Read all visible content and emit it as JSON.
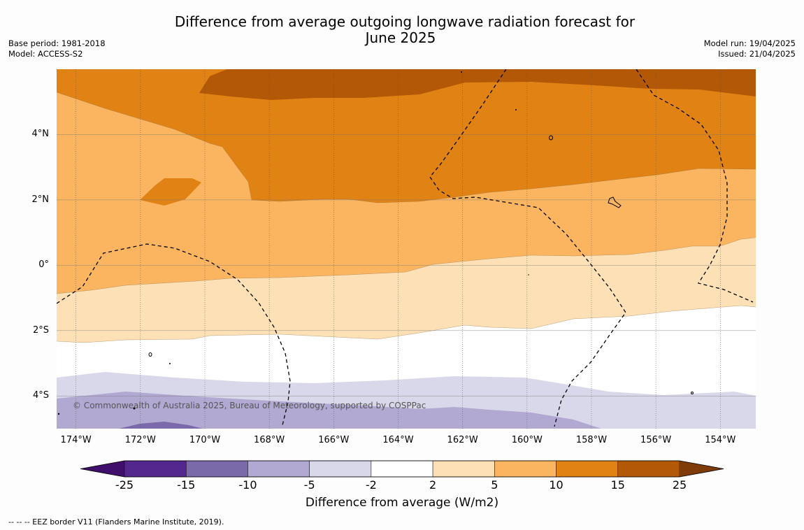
{
  "title": {
    "line1": "Difference from average outgoing longwave radiation forecast for",
    "line2": "June 2025"
  },
  "left_meta": {
    "base_period": "Base period: 1981-2018",
    "model": "Model: ACCESS-S2"
  },
  "right_meta": {
    "model_run": "Model run: 19/04/2025",
    "issued": "Issued: 21/04/2025"
  },
  "map": {
    "lon_range": [
      -174.6,
      -152.9
    ],
    "lat_range": [
      -5.0,
      6.0
    ],
    "y_labels": [
      "4°N",
      "2°N",
      "0°",
      "2°S",
      "4°S"
    ],
    "x_labels": [
      "174°W",
      "172°W",
      "170°W",
      "168°W",
      "166°W",
      "164°W",
      "162°W",
      "160°W",
      "158°W",
      "156°W",
      "154°W"
    ],
    "copyright": "© Commonwealth of Australia 2025, Bureau of Meteorology, supported by COSPPac"
  },
  "colorbar": {
    "title": "Difference from average (W/m2)",
    "ticks": [
      "-25",
      "-15",
      "-10",
      "-5",
      "-2",
      "2",
      "5",
      "10",
      "15",
      "25"
    ],
    "colors": [
      "#3f0f6b",
      "#54278f",
      "#7b6aaa",
      "#b1a9d2",
      "#d9d8ea",
      "#ffffff",
      "#fde0b6",
      "#fbb561",
      "#e08214",
      "#b35806",
      "#7f3b08"
    ]
  },
  "footnote": "--  --  -- EEZ border V11 (Flanders Marine Institute, 2019)."
}
